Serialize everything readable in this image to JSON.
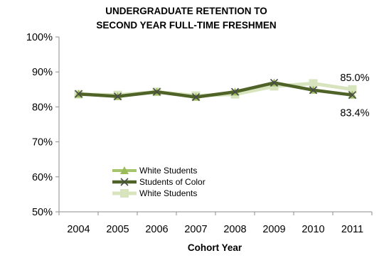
{
  "chart_data": {
    "type": "line",
    "title_lines": [
      "UNDERGRADUATE RETENTION TO",
      "SECOND YEAR FULL-TIME FRESHMEN"
    ],
    "xlabel": "Cohort Year",
    "ylabel": "",
    "x": [
      "2004",
      "2005",
      "2006",
      "2007",
      "2008",
      "2009",
      "2010",
      "2011"
    ],
    "ylim": [
      50,
      100
    ],
    "yticks": [
      "50%",
      "60%",
      "70%",
      "80%",
      "90%",
      "100%"
    ],
    "ytick_values": [
      50,
      60,
      70,
      80,
      90,
      100
    ],
    "grid": false,
    "legend_position": "bottom-left",
    "series": [
      {
        "name": "White Students",
        "marker": "triangle",
        "color": "#a6c46a",
        "values": [
          83.7,
          83.0,
          84.3,
          82.8,
          84.3,
          86.9,
          84.8,
          83.4
        ]
      },
      {
        "name": "Students of Color",
        "marker": "x",
        "color": "#4f6228",
        "values": [
          83.7,
          83.0,
          84.3,
          82.8,
          84.3,
          86.9,
          84.8,
          83.4
        ]
      },
      {
        "name": "White Students",
        "marker": "square",
        "color": "#d7e4bd",
        "values": [
          83.6,
          83.4,
          84.3,
          83.2,
          83.6,
          85.9,
          86.7,
          85.0
        ]
      }
    ],
    "annotations": [
      {
        "text": "85.0%",
        "x": "2011",
        "value": 85.0
      },
      {
        "text": "83.4%",
        "x": "2011",
        "value": 83.4
      }
    ]
  }
}
